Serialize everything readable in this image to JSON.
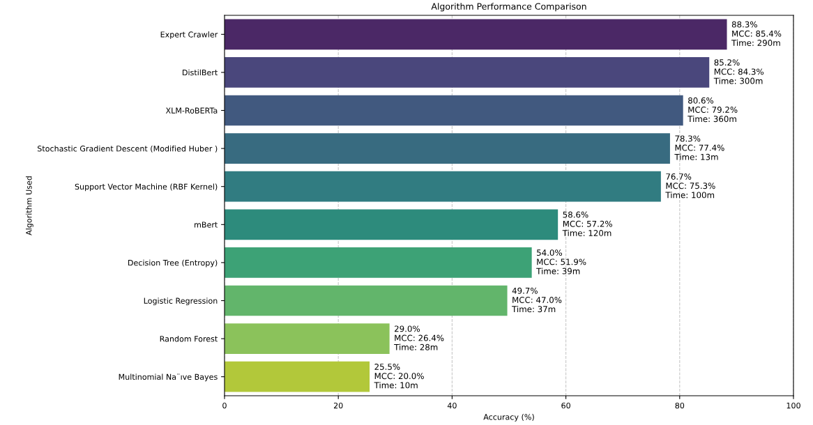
{
  "chart_data": {
    "type": "bar",
    "orientation": "horizontal",
    "title": "Algorithm Performance Comparison",
    "xlabel": "Accuracy (%)",
    "ylabel": "Algorithm Used",
    "categories": [
      "Expert Crawler",
      "DistilBert",
      "XLM-RoBERTa",
      "Stochastic Gradient Descent (Modified Huber )",
      "Support Vector Machine (RBF Kernel)",
      "mBert",
      "Decision Tree (Entropy)",
      "Logistic Regression",
      "Random Forest",
      "Multinomial Na¨ıve Bayes"
    ],
    "values": [
      88.3,
      85.2,
      80.6,
      78.3,
      76.7,
      58.6,
      54.0,
      49.7,
      29.0,
      25.5
    ],
    "colors": [
      "#4b2866",
      "#4a477c",
      "#41597f",
      "#386b80",
      "#317c81",
      "#2d8b7c",
      "#3da276",
      "#62b56b",
      "#8bc25b",
      "#b2c83a"
    ],
    "value_labels": [
      "88.3%\nMCC: 85.4%\nTime: 290m",
      "85.2%\nMCC: 84.3%\nTime: 300m",
      "80.6%\nMCC: 79.2%\nTime: 360m",
      "78.3%\nMCC: 77.4%\nTime: 13m",
      "76.7%\nMCC: 75.3%\nTime: 100m",
      "58.6%\nMCC: 57.2%\nTime: 120m",
      "54.0%\nMCC: 51.9%\nTime: 39m",
      "49.7%\nMCC: 47.0%\nTime: 37m",
      "29.0%\nMCC: 26.4%\nTime: 28m",
      "25.5%\nMCC: 20.0%\nTime: 10m"
    ],
    "xlim": [
      0,
      100
    ],
    "xticks": [
      0,
      20,
      40,
      60,
      80,
      100
    ],
    "grid": "x"
  }
}
